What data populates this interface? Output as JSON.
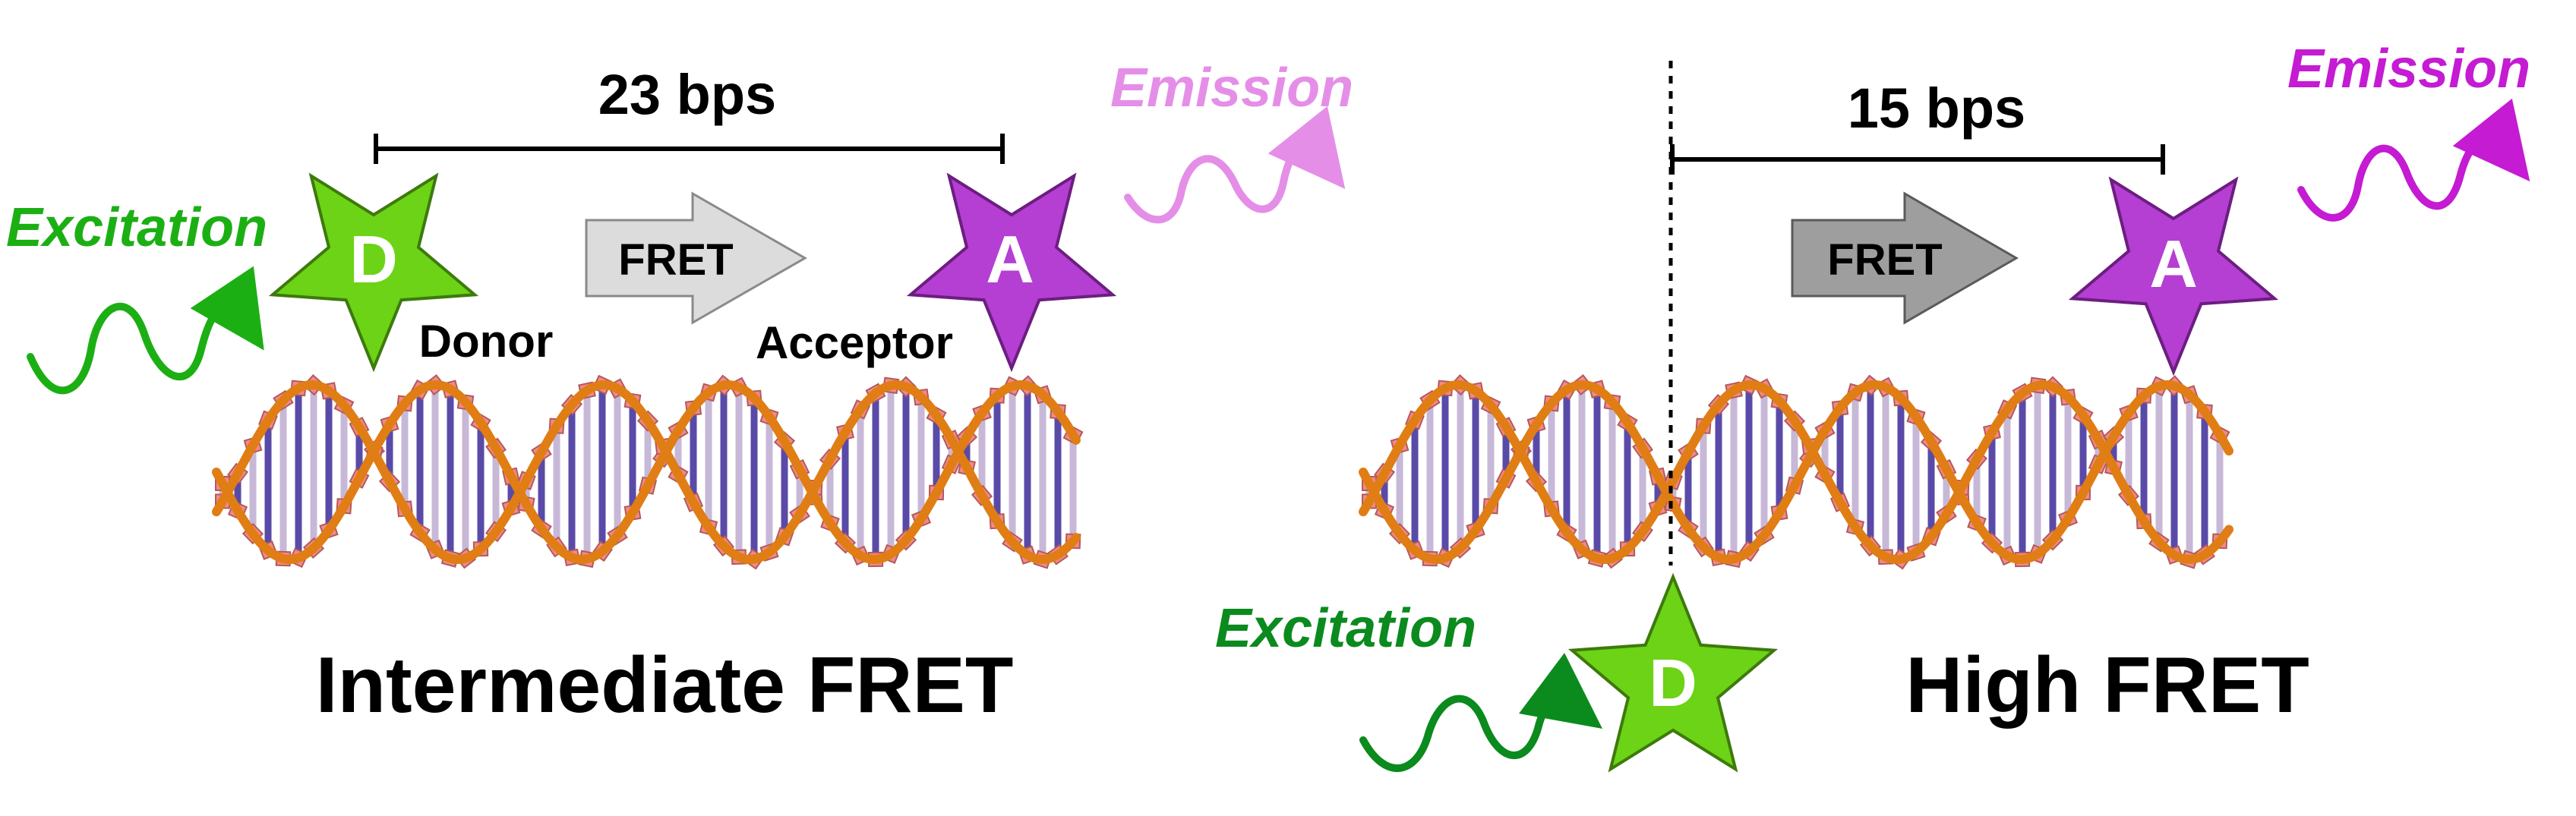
{
  "panels": [
    {
      "distance_label": "23 bps",
      "donor": {
        "letter": "D",
        "label": "Donor",
        "color": "#6cd316"
      },
      "acceptor": {
        "letter": "A",
        "label": "Acceptor",
        "color": "#b43fd2"
      },
      "fret_label": "FRET",
      "excitation_label": "Excitation",
      "emission_label": "Emission",
      "title": "Intermediate FRET"
    },
    {
      "distance_label": "15 bps",
      "donor": {
        "letter": "D",
        "color": "#6cd316"
      },
      "acceptor": {
        "letter": "A",
        "color": "#b43fd2"
      },
      "fret_label": "FRET",
      "excitation_label": "Excitation",
      "emission_label": "Emission",
      "title": "High FRET"
    }
  ],
  "colors": {
    "excitation_left": "#1caf14",
    "excitation_right": "#0b8a1e",
    "emission_left": "#e58ee8",
    "emission_right": "#c41bd3",
    "dna_backbone": "#e07d14",
    "dna_base": "#f08a8a",
    "fret_arrow_left": "#dcdcdc",
    "fret_arrow_right": "#9e9e9e"
  }
}
